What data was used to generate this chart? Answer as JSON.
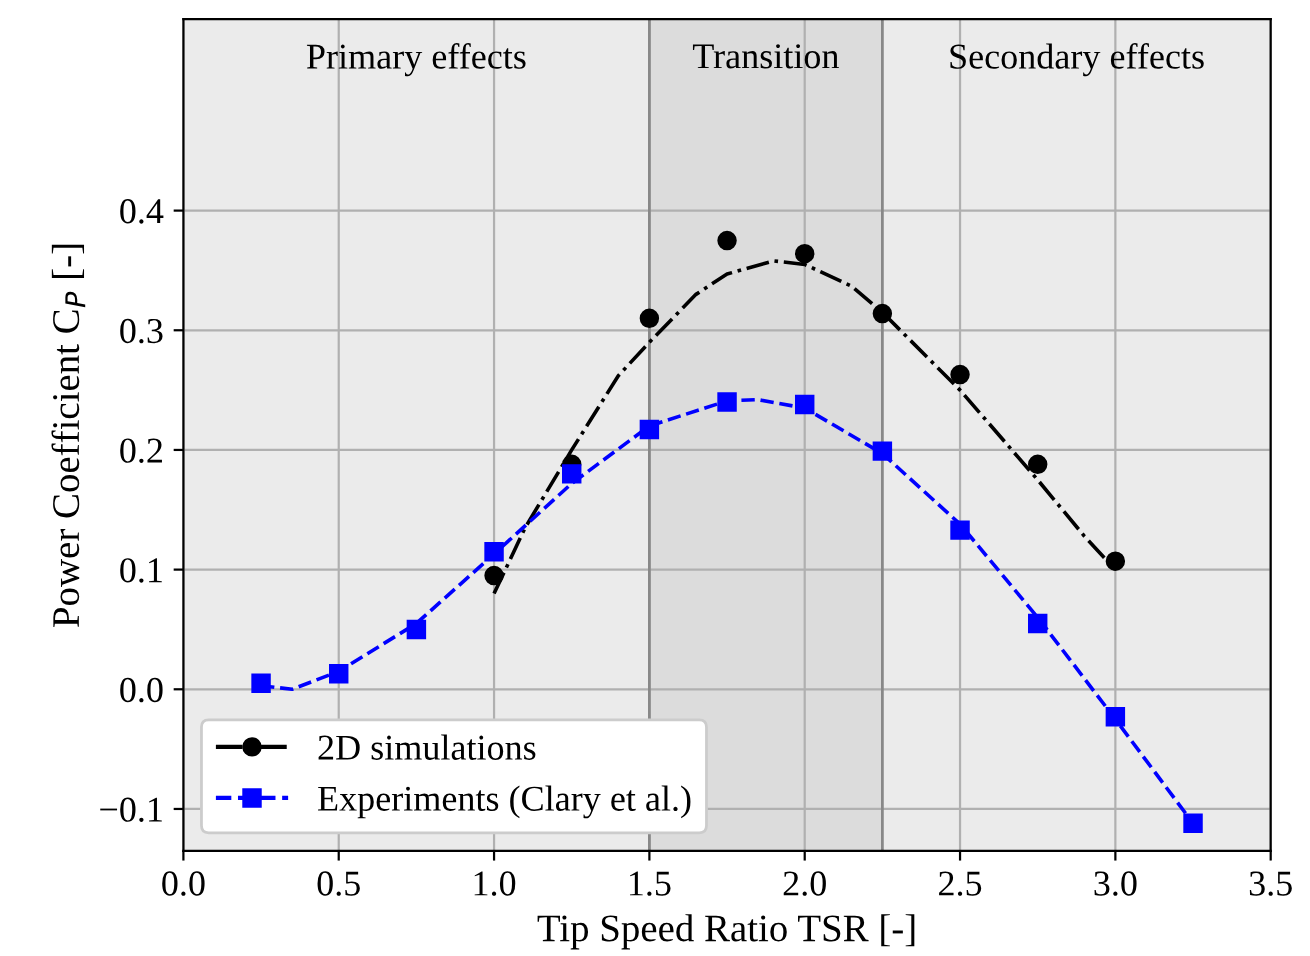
{
  "chart_data": {
    "type": "scatter",
    "xlabel": "Tip Speed Ratio TSR [-]",
    "ylabel": "Power Coefficient C$_{P}$ [-]",
    "xlim": [
      0,
      3.5
    ],
    "ylim": [
      -0.135,
      0.56
    ],
    "xticks": [
      {
        "value": 0,
        "label": "0.0"
      },
      {
        "value": 0.5,
        "label": "0.5"
      },
      {
        "value": 1,
        "label": "1.0"
      },
      {
        "value": 1.5,
        "label": "1.5"
      },
      {
        "value": 2,
        "label": "2.0"
      },
      {
        "value": 2.5,
        "label": "2.5"
      },
      {
        "value": 3,
        "label": "3.0"
      },
      {
        "value": 3.5,
        "label": "3.5"
      }
    ],
    "yticks": [
      {
        "value": -0.1,
        "label": "−0.1"
      },
      {
        "value": 0,
        "label": "0.0"
      },
      {
        "value": 0.1,
        "label": "0.1"
      },
      {
        "value": 0.2,
        "label": "0.2"
      },
      {
        "value": 0.3,
        "label": "0.3"
      },
      {
        "value": 0.4,
        "label": "0.4"
      }
    ],
    "grid": true,
    "ref_lines": [
      {
        "axis": "x",
        "value": 1.5,
        "color": "#888888"
      },
      {
        "axis": "x",
        "value": 2.25,
        "color": "#888888"
      }
    ],
    "legend": "bottom left",
    "bands": [
      {
        "axis": "x",
        "from": 0,
        "to": 1.5,
        "label": "Primary effects",
        "color": "#ebebeb"
      },
      {
        "axis": "x",
        "from": 1.5,
        "to": 2.25,
        "label": "Transition",
        "color": "#dcdcdc"
      },
      {
        "axis": "x",
        "from": 2.25,
        "to": 3.5,
        "label": "Secondary effects",
        "color": "#ebebeb"
      }
    ],
    "series": [
      {
        "name": "2D simulations",
        "color": "#000000",
        "marker": "circle",
        "line_style": "dashdot",
        "x": [
          1.0,
          1.25,
          1.5,
          1.75,
          2.0,
          2.25,
          2.5,
          2.75,
          3.0
        ],
        "values": [
          0.095,
          0.188,
          0.31,
          0.375,
          0.364,
          0.314,
          0.263,
          0.188,
          0.107
        ]
      },
      {
        "type": "line",
        "color": "#000000",
        "line_style": "dashdot",
        "x": [
          1.0,
          1.1,
          1.25,
          1.4,
          1.5,
          1.65,
          1.75,
          1.9,
          2.0,
          2.15,
          2.25,
          2.4,
          2.5,
          2.65,
          2.75,
          2.9,
          3.0
        ],
        "values": [
          0.08,
          0.135,
          0.2,
          0.262,
          0.29,
          0.33,
          0.347,
          0.358,
          0.355,
          0.337,
          0.315,
          0.276,
          0.25,
          0.205,
          0.175,
          0.128,
          0.1
        ]
      },
      {
        "name": "Experiments (Clary et al.)",
        "color": "#0000ff",
        "marker": "square",
        "line_style": "dashed",
        "x": [
          0.25,
          0.5,
          0.75,
          1.0,
          1.25,
          1.5,
          1.75,
          2.0,
          2.25,
          2.5,
          2.75,
          3.0,
          3.25
        ],
        "values": [
          0.005,
          0.013,
          0.05,
          0.115,
          0.18,
          0.217,
          0.24,
          0.238,
          0.199,
          0.133,
          0.055,
          -0.023,
          -0.112
        ]
      },
      {
        "type": "line",
        "color": "#0000ff",
        "line_style": "dashed",
        "x": [
          0.25,
          0.35,
          0.5,
          0.75,
          1.0,
          1.25,
          1.5,
          1.75,
          1.85,
          2.0,
          2.25,
          2.5,
          2.75,
          3.0,
          3.25
        ],
        "values": [
          0.003,
          0.0,
          0.015,
          0.055,
          0.113,
          0.172,
          0.22,
          0.241,
          0.242,
          0.235,
          0.197,
          0.138,
          0.06,
          -0.025,
          -0.112
        ]
      }
    ]
  }
}
